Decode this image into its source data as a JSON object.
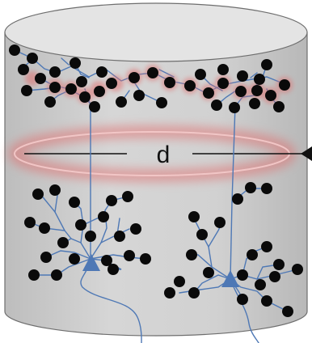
{
  "diagram": {
    "label": "d",
    "colors": {
      "cylinder_fill": "#cfcfcf",
      "cylinder_top": "#e3e3e3",
      "cylinder_stroke": "#6e6e6e",
      "neuron_dot": "#0a0a0a",
      "neurite": "#4e78b5",
      "glow": "#e07070"
    },
    "icons": [
      "cylinder-shape",
      "neuron-soma-triangle",
      "arrowhead-icon"
    ]
  }
}
